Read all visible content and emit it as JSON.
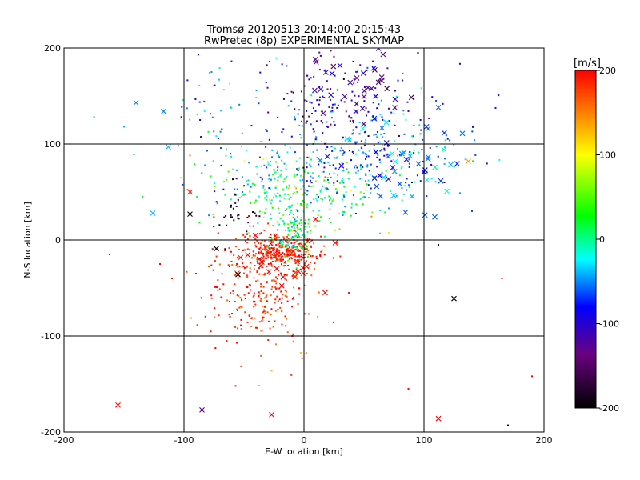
{
  "chart_data": {
    "type": "scatter",
    "title": "Tromsø 20120513 20:14:00-20:15:43",
    "subtitle": "RwPretec (8p) EXPERIMENTAL SKYMAP",
    "xlabel": "E-W location [km]",
    "ylabel": "N-S location [km]",
    "xlim": [
      -200,
      200
    ],
    "ylim": [
      -200,
      200
    ],
    "xticks": [
      -200,
      -100,
      0,
      100,
      200
    ],
    "yticks": [
      -200,
      -100,
      0,
      100,
      200
    ],
    "grid": true,
    "colorbar": {
      "label": "[m/s]",
      "range": [
        -200,
        200
      ],
      "ticks": [
        200,
        100,
        0,
        -100,
        -200
      ],
      "colormap": "black-purple-blue-cyan-green-yellow-red",
      "stops": [
        "#000000",
        "#6a0080",
        "#0000ff",
        "#00ffff",
        "#00ff00",
        "#ffff00",
        "#ff0000"
      ]
    },
    "clusters": [
      {
        "center": [
          -18,
          -12
        ],
        "spread": [
          16,
          8
        ],
        "count": 260,
        "velocity": 190,
        "vspread": 15,
        "marker": "dot"
      },
      {
        "center": [
          -38,
          -48
        ],
        "spread": [
          22,
          26
        ],
        "count": 240,
        "velocity": 185,
        "vspread": 20,
        "marker": "dot"
      },
      {
        "center": [
          -30,
          -95
        ],
        "spread": [
          22,
          22
        ],
        "count": 40,
        "velocity": 180,
        "vspread": 25,
        "marker": "dot"
      },
      {
        "center": [
          -8,
          8
        ],
        "spread": [
          10,
          14
        ],
        "count": 130,
        "velocity": 10,
        "vspread": 35,
        "marker": "dot"
      },
      {
        "center": [
          -8,
          50
        ],
        "spread": [
          38,
          22
        ],
        "count": 230,
        "velocity": 25,
        "vspread": 45,
        "marker": "dot"
      },
      {
        "center": [
          10,
          72
        ],
        "spread": [
          55,
          18
        ],
        "count": 150,
        "velocity": -40,
        "vspread": 25,
        "marker": "dot"
      },
      {
        "center": [
          50,
          100
        ],
        "spread": [
          42,
          25
        ],
        "count": 200,
        "velocity": -65,
        "vspread": 30,
        "marker": "dot"
      },
      {
        "center": [
          35,
          150
        ],
        "spread": [
          32,
          25
        ],
        "count": 130,
        "velocity": -110,
        "vspread": 30,
        "marker": "dot"
      },
      {
        "center": [
          -60,
          30
        ],
        "spread": [
          10,
          18
        ],
        "count": 35,
        "velocity": -185,
        "vspread": 20,
        "marker": "dot"
      },
      {
        "center": [
          -70,
          140
        ],
        "spread": [
          22,
          28
        ],
        "count": 40,
        "velocity": -35,
        "vspread": 40,
        "marker": "dot"
      },
      {
        "center": [
          45,
          165
        ],
        "spread": [
          18,
          20
        ],
        "count": 35,
        "velocity": -120,
        "vspread": 25,
        "marker": "x"
      },
      {
        "center": [
          80,
          80
        ],
        "spread": [
          25,
          25
        ],
        "count": 45,
        "velocity": -55,
        "vspread": 30,
        "marker": "x"
      },
      {
        "center": [
          -22,
          -18
        ],
        "spread": [
          22,
          25
        ],
        "count": 30,
        "velocity": 195,
        "vspread": 10,
        "marker": "x"
      }
    ],
    "points": [
      {
        "x": -155,
        "y": -172,
        "v": 200,
        "marker": "x"
      },
      {
        "x": -85,
        "y": -177,
        "v": -130,
        "marker": "x"
      },
      {
        "x": -27,
        "y": -182,
        "v": 200,
        "marker": "x"
      },
      {
        "x": 112,
        "y": -186,
        "v": 200,
        "marker": "x"
      },
      {
        "x": 125,
        "y": -61,
        "v": -200,
        "marker": "x"
      },
      {
        "x": 137,
        "y": 82,
        "v": 140,
        "marker": "x"
      },
      {
        "x": 102,
        "y": 118,
        "v": -70,
        "marker": "x"
      },
      {
        "x": 112,
        "y": 138,
        "v": -60,
        "marker": "x"
      },
      {
        "x": -140,
        "y": 143,
        "v": -50,
        "marker": "x"
      },
      {
        "x": -117,
        "y": 134,
        "v": -50,
        "marker": "x"
      },
      {
        "x": -113,
        "y": 97,
        "v": -40,
        "marker": "x"
      },
      {
        "x": -126,
        "y": 28,
        "v": -40,
        "marker": "x"
      },
      {
        "x": -95,
        "y": 27,
        "v": -190,
        "marker": "x"
      },
      {
        "x": -73,
        "y": -9,
        "v": -200,
        "marker": "x"
      },
      {
        "x": -55,
        "y": -36,
        "v": -200,
        "marker": "x"
      },
      {
        "x": 109,
        "y": 24,
        "v": -60,
        "marker": "x"
      },
      {
        "x": 132,
        "y": 111,
        "v": -55,
        "marker": "x"
      },
      {
        "x": -162,
        "y": -15,
        "v": 200,
        "marker": "dot"
      },
      {
        "x": 190,
        "y": -142,
        "v": 200,
        "marker": "dot"
      },
      {
        "x": 165,
        "y": -40,
        "v": 195,
        "marker": "dot"
      },
      {
        "x": 170,
        "y": -193,
        "v": -200,
        "marker": "dot"
      },
      {
        "x": 87,
        "y": -155,
        "v": 200,
        "marker": "dot"
      },
      {
        "x": -57,
        "y": -152,
        "v": 200,
        "marker": "dot"
      },
      {
        "x": -90,
        "y": -35,
        "v": 200,
        "marker": "dot"
      },
      {
        "x": -110,
        "y": -40,
        "v": 200,
        "marker": "dot"
      },
      {
        "x": -120,
        "y": -25,
        "v": 200,
        "marker": "dot"
      },
      {
        "x": -175,
        "y": 128,
        "v": -40,
        "marker": "dot"
      },
      {
        "x": -150,
        "y": 118,
        "v": -40,
        "marker": "dot"
      },
      {
        "x": 142,
        "y": 104,
        "v": -50,
        "marker": "dot"
      },
      {
        "x": 95,
        "y": 195,
        "v": -200,
        "marker": "dot"
      },
      {
        "x": 110,
        "y": 145,
        "v": -60,
        "marker": "dot"
      },
      {
        "x": 140,
        "y": 30,
        "v": -60,
        "marker": "dot"
      },
      {
        "x": 112,
        "y": -5,
        "v": -200,
        "marker": "dot"
      },
      {
        "x": 90,
        "y": 60,
        "v": -200,
        "marker": "dot"
      },
      {
        "x": 117,
        "y": 60,
        "v": -190,
        "marker": "dot"
      },
      {
        "x": -95,
        "y": 88,
        "v": 160,
        "marker": "dot"
      },
      {
        "x": -95,
        "y": 50,
        "v": 190,
        "marker": "x"
      },
      {
        "x": -88,
        "y": 193,
        "v": -120,
        "marker": "dot"
      }
    ]
  }
}
